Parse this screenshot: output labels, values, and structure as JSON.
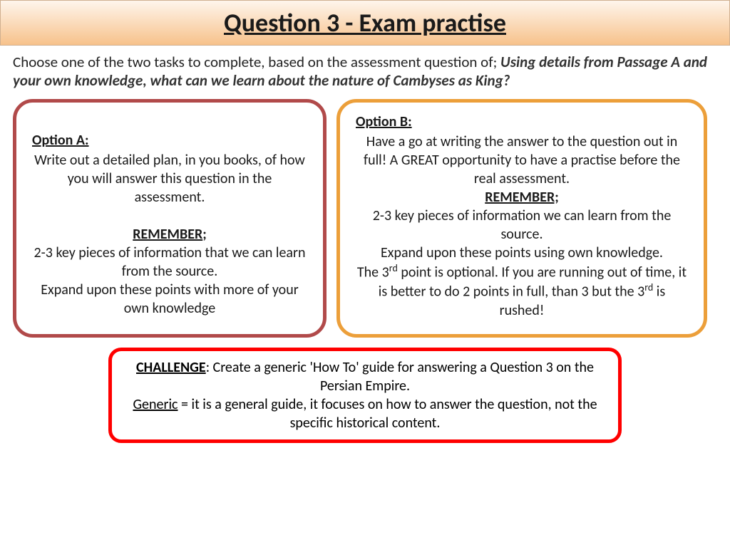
{
  "title": "Question 3 - Exam practise",
  "intro": {
    "lead": "Choose one of the two tasks to complete, based on the assessment question of; ",
    "italic": "Using details from Passage A and your own knowledge, what can we learn about the nature of Cambyses as King?"
  },
  "optionA": {
    "label": "Option A:",
    "p1": "Write out a detailed plan, in you books, of how you will answer this question in the assessment.",
    "remember": "REMEMBER",
    "p2": "2-3 key pieces of information that we can learn from the source.",
    "p3": "Expand upon these points with more of your own knowledge"
  },
  "optionB": {
    "label": "Option B:",
    "p1": "Have a go at writing the answer to the question out in full! A GREAT opportunity to have a practise before the real assessment.",
    "remember": "REMEMBER;",
    "p2": "2-3 key pieces of information we can learn from the source.",
    "p3": "Expand upon these points using own knowledge.",
    "p4a": "The 3",
    "p4sup": "rd",
    "p4b": " point is optional. If you are running out of time, it is better to do 2 points in full, than 3 but the 3",
    "p4sup2": "rd",
    "p4c": " is rushed!"
  },
  "challenge": {
    "label": "CHALLENGE",
    "p1": ": Create a generic 'How To' guide for answering a Question 3 on the Persian Empire.",
    "genericLabel": "Generic",
    "p2": " = it is a general guide, it focuses on how to answer the question, not the specific historical content."
  },
  "colors": {
    "titleGradientTop": "#fef5ec",
    "titleGradientBottom": "#f7c28b",
    "optionABorder": "#b14a4a",
    "optionBBorder": "#ec9f3a",
    "challengeBorder": "#ff0000"
  }
}
